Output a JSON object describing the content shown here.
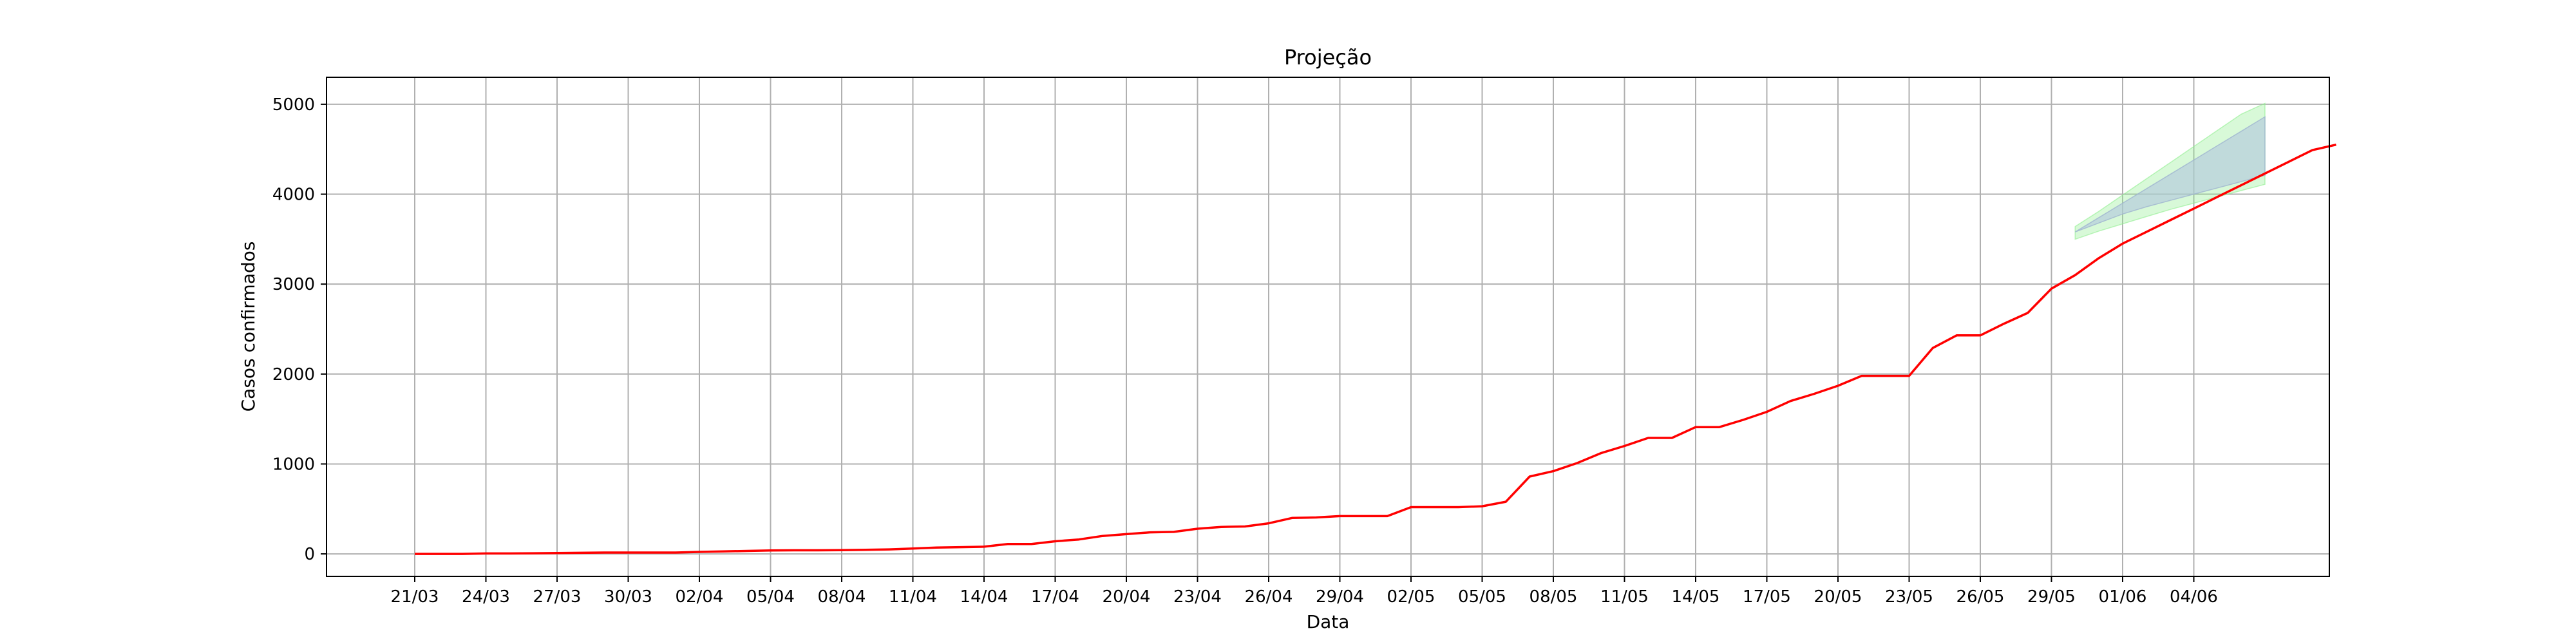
{
  "chart_data": {
    "type": "line",
    "title": "Projeção",
    "xlabel": "Data",
    "ylabel": "Casos confirmados",
    "grid": true,
    "ylim": [
      -250,
      5300
    ],
    "x_ticks": [
      "21/03",
      "24/03",
      "27/03",
      "30/03",
      "02/04",
      "05/04",
      "08/04",
      "11/04",
      "14/04",
      "17/04",
      "20/04",
      "23/04",
      "26/04",
      "29/04",
      "02/05",
      "05/05",
      "08/05",
      "11/05",
      "14/05",
      "17/05",
      "20/05",
      "23/05",
      "26/05",
      "29/05",
      "01/06",
      "04/06"
    ],
    "y_ticks": [
      0,
      1000,
      2000,
      3000,
      4000,
      5000
    ],
    "colors": {
      "line": "#ff0000",
      "inner_band": "#b0c4de",
      "outer_band": "#90ee90",
      "grid": "#b0b0b0"
    },
    "series": [
      {
        "start": "21/03",
        "values": [
          0,
          0,
          0,
          5,
          5,
          7,
          9,
          12,
          15,
          15,
          15,
          15,
          22,
          28,
          33,
          38,
          40,
          40,
          42,
          45,
          50,
          60,
          70,
          75,
          80,
          110,
          110,
          140,
          160,
          200,
          220,
          240,
          245,
          280,
          300,
          305,
          340,
          400,
          405,
          420,
          420,
          420,
          520,
          520,
          520,
          530,
          580,
          860,
          920,
          1010,
          1120,
          1200,
          1290,
          1290,
          1410,
          1410,
          1490,
          1580,
          1700,
          1780,
          1870,
          1980,
          1980,
          1980,
          2290,
          2430,
          2430,
          2560,
          2680,
          2950,
          3100,
          3290,
          3450,
          3580,
          3710,
          3840,
          3970,
          4100,
          4230,
          4360,
          4490,
          4550
        ]
      }
    ],
    "projection": {
      "start": "29/05",
      "inner_upper": [
        3580,
        3740,
        3900,
        4060,
        4220,
        4380,
        4540,
        4700,
        4860
      ],
      "inner_lower": [
        3580,
        3680,
        3780,
        3860,
        3930,
        4000,
        4070,
        4140,
        4210
      ],
      "outer_upper": [
        3640,
        3810,
        3990,
        4170,
        4350,
        4530,
        4710,
        4890,
        5010
      ],
      "outer_lower": [
        3500,
        3590,
        3670,
        3750,
        3830,
        3900,
        3970,
        4040,
        4110
      ]
    }
  }
}
